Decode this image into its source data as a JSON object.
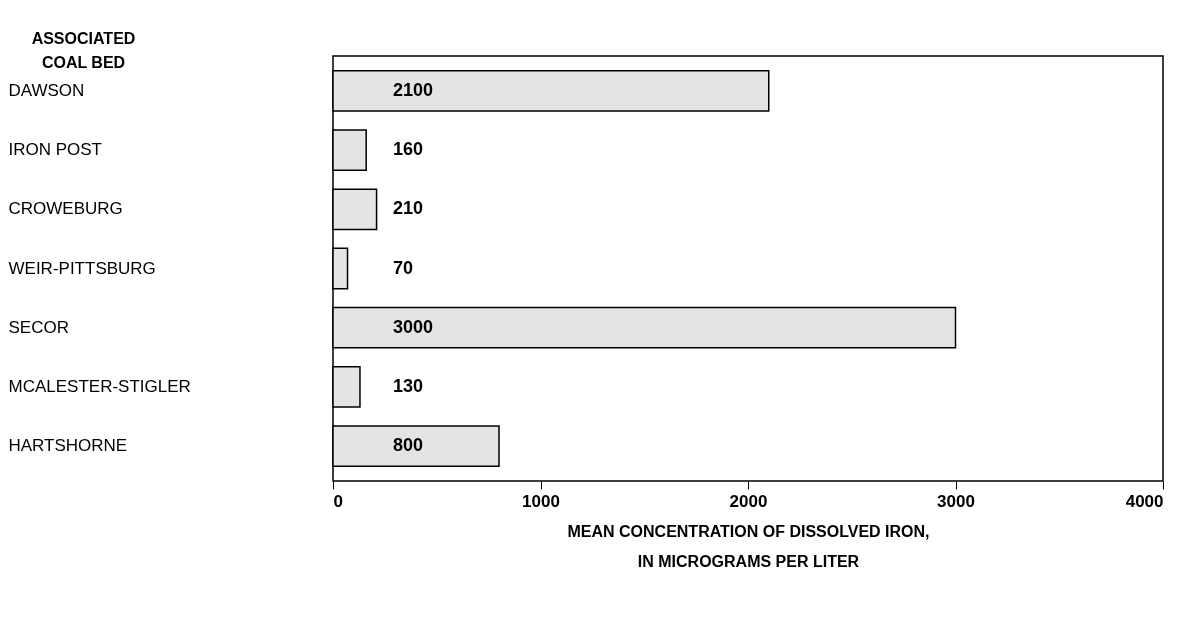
{
  "chart_data": {
    "type": "bar",
    "orientation": "horizontal",
    "ylabel": "ASSOCIATED\nCOAL BED",
    "xlabel": "MEAN CONCENTRATION OF DISSOLVED IRON,\nIN MICROGRAMS PER LITER",
    "categories": [
      "DAWSON",
      "IRON POST",
      "CROWEBURG",
      "WEIR-PITTSBURG",
      "SECOR",
      "MCALESTER-STIGLER",
      "HARTSHORNE"
    ],
    "values": [
      2100,
      160,
      210,
      70,
      3000,
      130,
      800
    ],
    "color": "#e4e4e4",
    "data_labels": true,
    "xlim": [
      0,
      4000
    ],
    "xticks": [
      0,
      1000,
      2000,
      3000,
      4000
    ],
    "grid": false
  }
}
